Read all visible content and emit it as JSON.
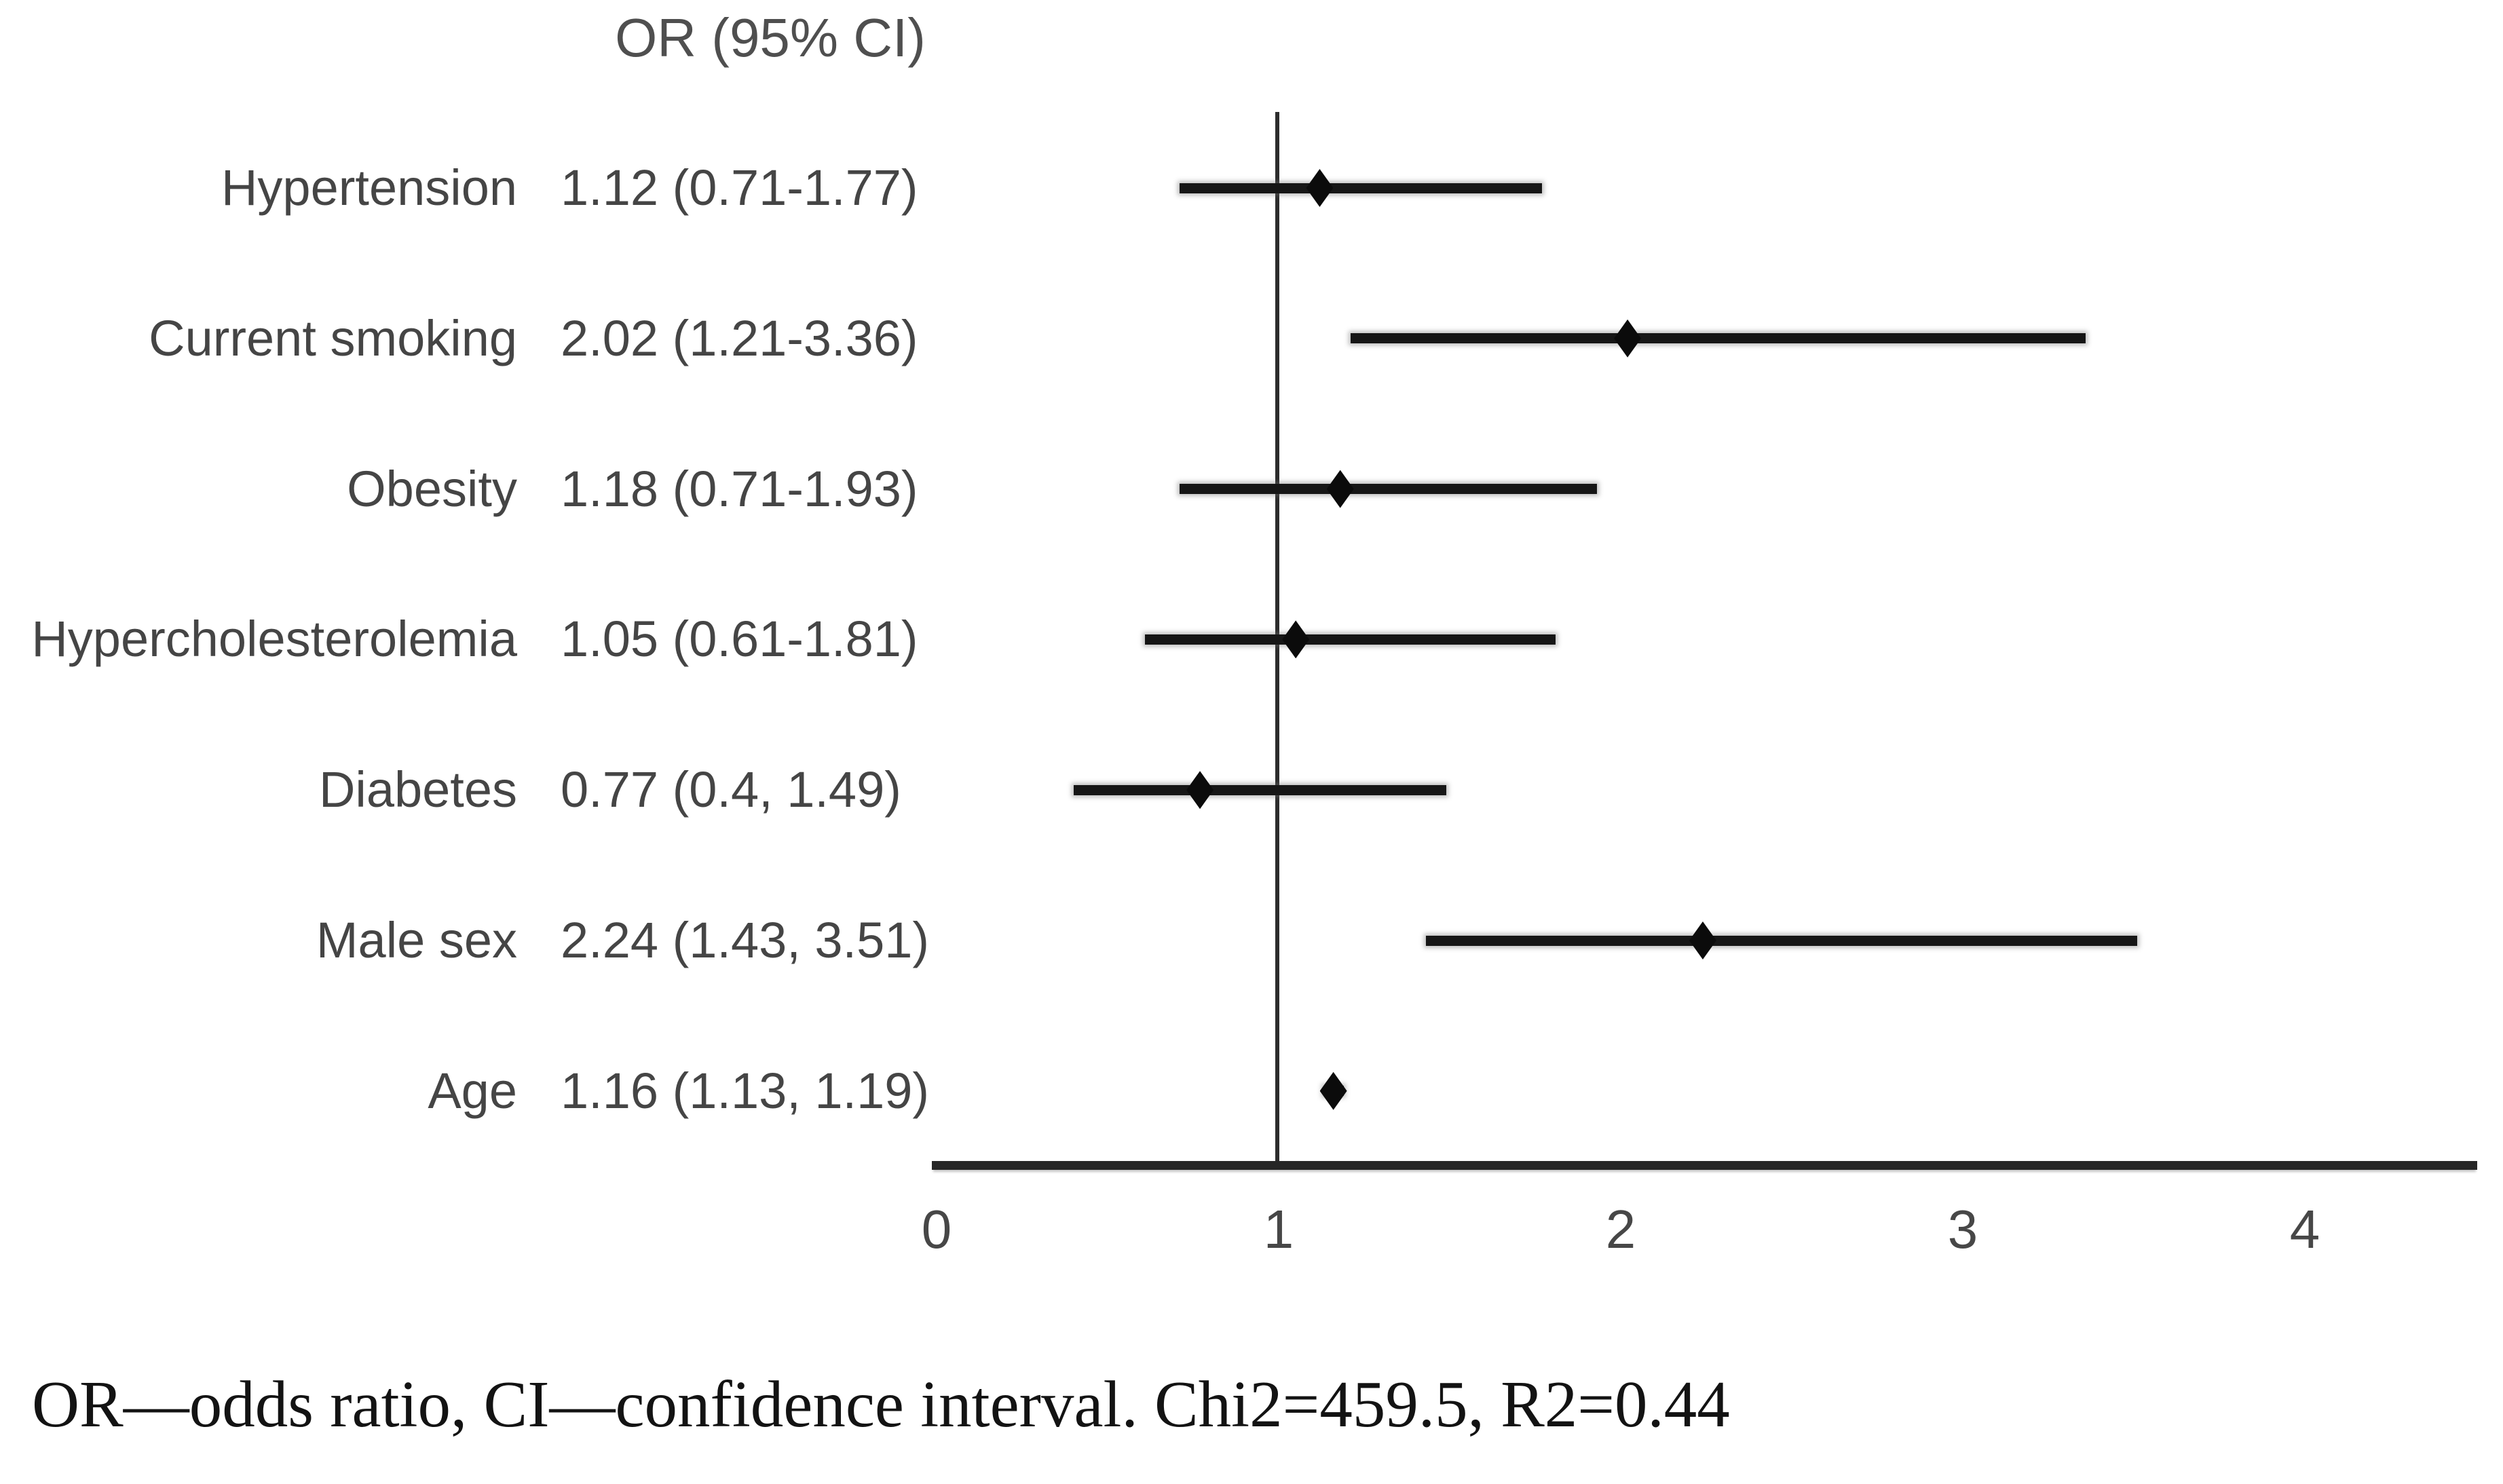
{
  "chart_data": {
    "type": "forest",
    "title": "OR (95% CI)",
    "rows": [
      {
        "label": "Hypertension",
        "or": 1.12,
        "ci_lo": 0.71,
        "ci_hi": 1.77,
        "or_ci_text": "1.12 (0.71-1.77)"
      },
      {
        "label": "Current smoking",
        "or": 2.02,
        "ci_lo": 1.21,
        "ci_hi": 3.36,
        "or_ci_text": "2.02 (1.21-3.36)"
      },
      {
        "label": "Obesity",
        "or": 1.18,
        "ci_lo": 0.71,
        "ci_hi": 1.93,
        "or_ci_text": "1.18 (0.71-1.93)"
      },
      {
        "label": "Hypercholesterolemia",
        "or": 1.05,
        "ci_lo": 0.61,
        "ci_hi": 1.81,
        "or_ci_text": "1.05 (0.61-1.81)"
      },
      {
        "label": "Diabetes",
        "or": 0.77,
        "ci_lo": 0.4,
        "ci_hi": 1.49,
        "or_ci_text": "0.77 (0.4, 1.49)"
      },
      {
        "label": "Male sex",
        "or": 2.24,
        "ci_lo": 1.43,
        "ci_hi": 3.51,
        "or_ci_text": "2.24 (1.43, 3.51)"
      },
      {
        "label": "Age",
        "or": 1.16,
        "ci_lo": 1.13,
        "ci_hi": 1.19,
        "or_ci_text": "1.16 (1.13, 1.19)"
      }
    ],
    "x_axis": {
      "ticks": [
        0,
        1,
        2,
        3,
        4
      ],
      "range": [
        0,
        4.5
      ],
      "reference_line_value": 1
    },
    "legend_position": "none",
    "grid": false,
    "footnote": "OR—odds ratio, CI—confidence interval. Chi2=459.5, R2=0.44",
    "colors": {
      "marker": "#0b0b0b",
      "ci_bar": "#161616",
      "axis_line": "#262626",
      "reference_line": "#2c2c2c",
      "label_text": "#454545",
      "header_text": "#4f4f4f",
      "tick_text": "#474747",
      "footnote_text": "#131313",
      "background": "#ffffff"
    }
  }
}
